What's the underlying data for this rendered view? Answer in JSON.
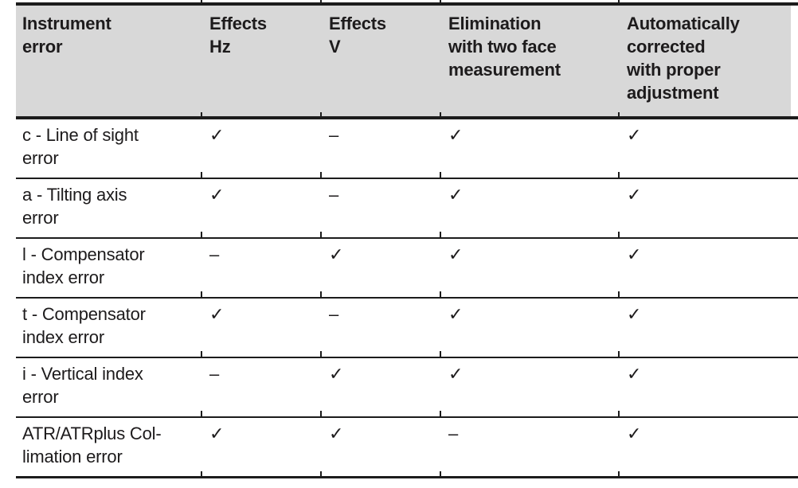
{
  "colors": {
    "header_bg": "#d8d8d8",
    "rule": "#1c1c1c",
    "text": "#1d1b1c",
    "page_bg": "#ffffff"
  },
  "table": {
    "marks": {
      "check": "✓",
      "dash": "–"
    },
    "columns": [
      {
        "label": "Instrument\nerror"
      },
      {
        "label": "Effects\nHz"
      },
      {
        "label": "Effects\nV"
      },
      {
        "label": "Elimination\nwith two face\nmeasurement"
      },
      {
        "label": "Automatically\ncorrected\nwith proper\nadjustment"
      }
    ],
    "rows": [
      {
        "label": "c - Line of sight\nerror",
        "cells": [
          "✓",
          "–",
          "✓",
          "✓"
        ]
      },
      {
        "label": "a - Tilting axis\nerror",
        "cells": [
          "✓",
          "–",
          "✓",
          "✓"
        ]
      },
      {
        "label": "l - Compensator\nindex error",
        "cells": [
          "–",
          "✓",
          "✓",
          "✓"
        ]
      },
      {
        "label": "t - Compensator\nindex error",
        "cells": [
          "✓",
          "–",
          "✓",
          "✓"
        ]
      },
      {
        "label": "i - Vertical index\nerror",
        "cells": [
          "–",
          "✓",
          "✓",
          "✓"
        ]
      },
      {
        "label": "ATR/ATRplus Col-\nlimation error",
        "cells": [
          "✓",
          "✓",
          "–",
          "✓"
        ]
      }
    ]
  }
}
